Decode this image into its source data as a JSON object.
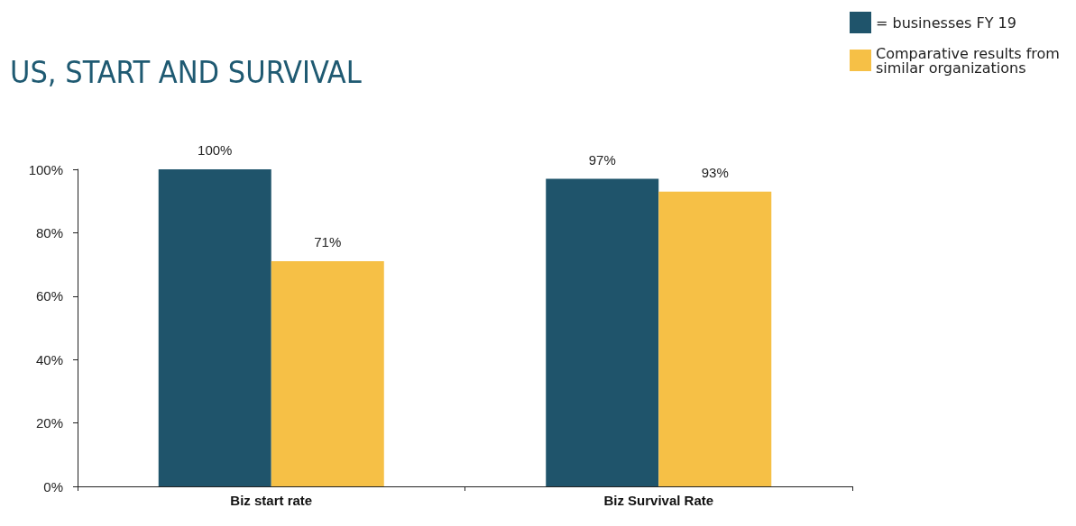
{
  "chart_data": {
    "type": "bar",
    "title": "US, START AND SURVIVAL",
    "categories": [
      "Biz start rate",
      "Biz Survival Rate"
    ],
    "series": [
      {
        "name": "= businesses FY 19",
        "color": "#1f546b",
        "values": [
          100,
          97
        ],
        "value_labels": [
          "100%",
          "97%"
        ]
      },
      {
        "name": "Comparative results from similar organizations",
        "color": "#f6c046",
        "values": [
          71,
          93
        ],
        "value_labels": [
          "71%",
          "93%"
        ]
      }
    ],
    "ylim": [
      0,
      100
    ],
    "yticks": [
      {
        "value": 0,
        "label": "0%"
      },
      {
        "value": 20,
        "label": "20%"
      },
      {
        "value": 40,
        "label": "40%"
      },
      {
        "value": 60,
        "label": "60%"
      },
      {
        "value": 80,
        "label": "80%"
      },
      {
        "value": 100,
        "label": "100%"
      }
    ],
    "grid": false,
    "legend": "top right"
  }
}
